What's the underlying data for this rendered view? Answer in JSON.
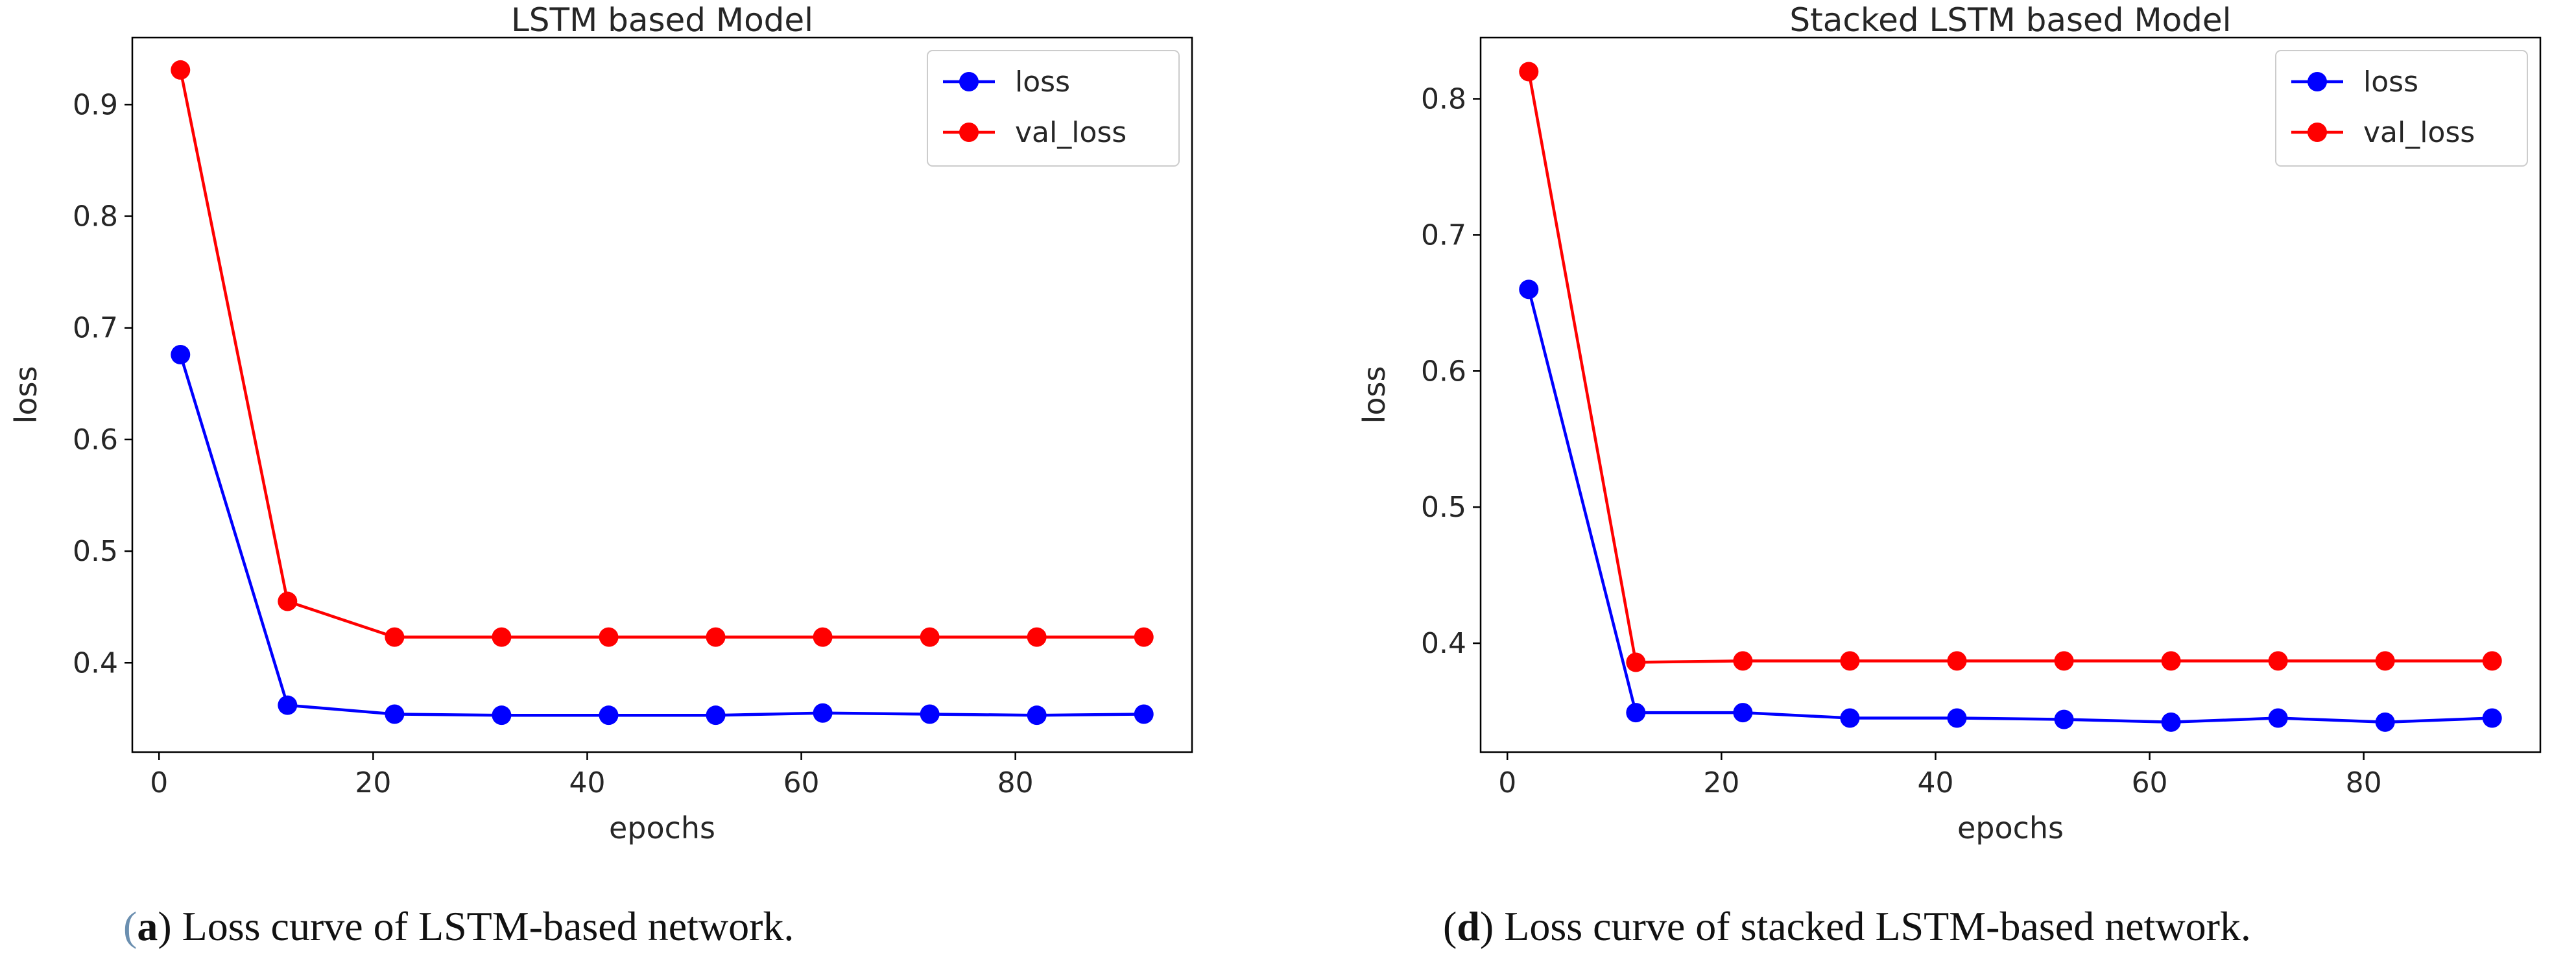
{
  "chart_data": [
    {
      "id": "a",
      "type": "line",
      "title": "LSTM based Model",
      "xlabel": "epochs",
      "ylabel": "loss",
      "xlim": [
        -2.5,
        96.5
      ],
      "ylim": [
        0.32,
        0.96
      ],
      "x_ticks": [
        0,
        20,
        40,
        60,
        80
      ],
      "y_ticks": [
        0.4,
        0.5,
        0.6,
        0.7,
        0.8,
        0.9
      ],
      "x": [
        2,
        12,
        22,
        32,
        42,
        52,
        62,
        72,
        82,
        92
      ],
      "series": [
        {
          "name": "loss",
          "color": "#0000ff",
          "values": [
            0.676,
            0.362,
            0.354,
            0.353,
            0.353,
            0.353,
            0.355,
            0.354,
            0.353,
            0.354
          ]
        },
        {
          "name": "val_loss",
          "color": "#ff0000",
          "values": [
            0.931,
            0.455,
            0.423,
            0.423,
            0.423,
            0.423,
            0.423,
            0.423,
            0.423,
            0.423
          ]
        }
      ],
      "legend": "top-right",
      "grid": false
    },
    {
      "id": "d",
      "type": "line",
      "title": "Stacked LSTM based Model",
      "xlabel": "epochs",
      "ylabel": "loss",
      "xlim": [
        -2.5,
        96.5
      ],
      "ylim": [
        0.32,
        0.845
      ],
      "x_ticks": [
        0,
        20,
        40,
        60,
        80
      ],
      "y_ticks": [
        0.4,
        0.5,
        0.6,
        0.7,
        0.8
      ],
      "x": [
        2,
        12,
        22,
        32,
        42,
        52,
        62,
        72,
        82,
        92
      ],
      "series": [
        {
          "name": "loss",
          "color": "#0000ff",
          "values": [
            0.66,
            0.349,
            0.349,
            0.345,
            0.345,
            0.344,
            0.342,
            0.345,
            0.342,
            0.345
          ]
        },
        {
          "name": "val_loss",
          "color": "#ff0000",
          "values": [
            0.82,
            0.386,
            0.387,
            0.387,
            0.387,
            0.387,
            0.387,
            0.387,
            0.387,
            0.387
          ]
        }
      ],
      "legend": "top-right",
      "grid": false
    }
  ],
  "captions": {
    "a": {
      "label": "a",
      "text": ") Loss curve of LSTM-based network."
    },
    "d": {
      "label": "d",
      "text": ") Loss curve of stacked LSTM-based network."
    }
  }
}
